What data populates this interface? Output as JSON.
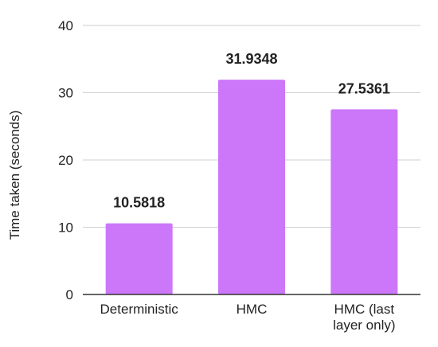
{
  "chart_data": {
    "type": "bar",
    "categories": [
      "Deterministic",
      "HMC",
      "HMC (last layer only)"
    ],
    "category_lines": [
      [
        "Deterministic"
      ],
      [
        "HMC"
      ],
      [
        "HMC (last",
        "layer only)"
      ]
    ],
    "values": [
      10.5818,
      31.9348,
      27.5361
    ],
    "data_labels": [
      "10.5818",
      "31.9348",
      "27.5361"
    ],
    "title": "",
    "xlabel": "",
    "ylabel": "Time taken (seconds)",
    "ylim": [
      0,
      40
    ],
    "yticks": [
      0,
      10,
      20,
      30,
      40
    ],
    "grid": true,
    "bar_color": "#cc77f9",
    "grid_color": "#cfcfcf",
    "axis_color": "#333333",
    "text_color": "#222222"
  }
}
